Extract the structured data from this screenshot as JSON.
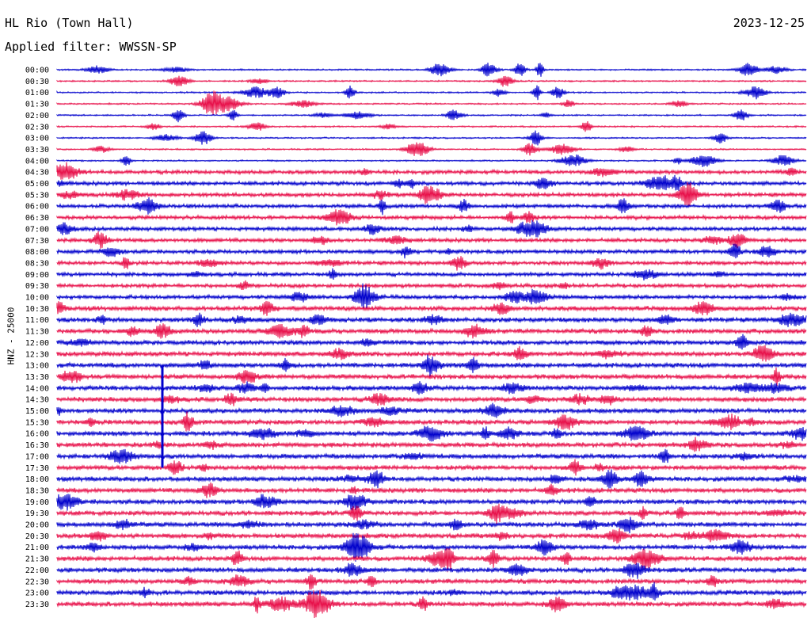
{
  "header": {
    "station": "HL Rio (Town Hall)",
    "filter": "Applied filter: WWSSN-SP",
    "date": "2023-12-25"
  },
  "chart_data": {
    "type": "line",
    "title": "HL Rio (Town Hall)",
    "subtitle": "Applied filter: WWSSN-SP",
    "date": "2023-12-25",
    "ylabel": "HNZ - 25000",
    "row_labels": [
      "00:00",
      "00:30",
      "01:00",
      "01:30",
      "02:00",
      "02:30",
      "03:00",
      "03:30",
      "04:00",
      "04:30",
      "05:00",
      "05:30",
      "06:00",
      "06:30",
      "07:00",
      "07:30",
      "08:00",
      "08:30",
      "09:00",
      "09:30",
      "10:00",
      "10:30",
      "11:00",
      "11:30",
      "12:00",
      "12:30",
      "13:00",
      "13:30",
      "14:00",
      "14:30",
      "15:00",
      "15:30",
      "16:00",
      "16:30",
      "17:00",
      "17:30",
      "18:00",
      "18:30",
      "19:00",
      "19:30",
      "20:00",
      "20:30",
      "21:00",
      "21:30",
      "22:00",
      "22:30",
      "23:00",
      "23:30"
    ],
    "row_colors": [
      "#0000cc",
      "#e8104a"
    ],
    "grid": false,
    "legend": "none"
  }
}
